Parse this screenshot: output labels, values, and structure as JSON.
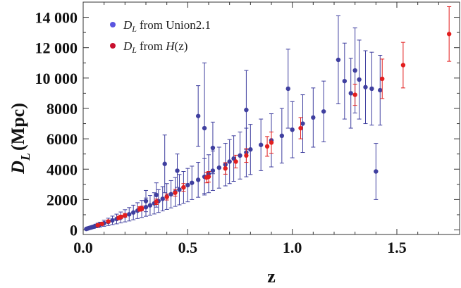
{
  "chart_data": {
    "type": "scatter",
    "xlabel": "z",
    "ylabel_main": "D",
    "ylabel_sub": "L",
    "ylabel_unit": "(Mpc)",
    "xlim": [
      0,
      1.8
    ],
    "ylim": [
      -300,
      15000
    ],
    "x_ticks": [
      0.0,
      0.5,
      1.0,
      1.5
    ],
    "x_tick_labels": [
      "0.0",
      "0.5",
      "1.0",
      "1.5"
    ],
    "y_ticks": [
      0,
      2000,
      4000,
      6000,
      8000,
      10000,
      12000,
      14000
    ],
    "y_tick_labels": [
      "0",
      "2000",
      "4000",
      "6000",
      "8000",
      "10 000",
      "12 000",
      "14 000"
    ],
    "legend_position": "top-left",
    "legend": [
      {
        "key": "union",
        "symbol": "D",
        "sub": "L",
        "text": "from Union2.1"
      },
      {
        "key": "hz",
        "symbol": "D",
        "sub": "L",
        "text": "from ",
        "func": "H",
        "arg": "(z)"
      }
    ],
    "series": [
      {
        "key": "union",
        "color": "#3f3f9f",
        "points": [
          [
            0.015,
            65,
            30
          ],
          [
            0.02,
            90,
            40
          ],
          [
            0.025,
            110,
            50
          ],
          [
            0.03,
            130,
            60
          ],
          [
            0.035,
            150,
            70
          ],
          [
            0.04,
            170,
            80
          ],
          [
            0.05,
            210,
            100
          ],
          [
            0.06,
            260,
            120
          ],
          [
            0.07,
            300,
            140
          ],
          [
            0.08,
            350,
            160
          ],
          [
            0.1,
            440,
            200
          ],
          [
            0.12,
            530,
            240
          ],
          [
            0.14,
            630,
            280
          ],
          [
            0.16,
            720,
            320
          ],
          [
            0.18,
            820,
            360
          ],
          [
            0.2,
            930,
            400
          ],
          [
            0.22,
            1030,
            440
          ],
          [
            0.24,
            1150,
            480
          ],
          [
            0.26,
            1270,
            520
          ],
          [
            0.28,
            1380,
            560
          ],
          [
            0.3,
            1500,
            600
          ],
          [
            0.32,
            1620,
            650
          ],
          [
            0.34,
            1750,
            700
          ],
          [
            0.36,
            1900,
            750
          ],
          [
            0.38,
            2050,
            800
          ],
          [
            0.4,
            2200,
            850
          ],
          [
            0.42,
            2350,
            900
          ],
          [
            0.44,
            2500,
            950
          ],
          [
            0.46,
            2650,
            1000
          ],
          [
            0.48,
            2800,
            1050
          ],
          [
            0.5,
            2950,
            1100
          ],
          [
            0.52,
            3100,
            1100
          ],
          [
            0.55,
            3300,
            1150
          ],
          [
            0.58,
            3500,
            1200
          ],
          [
            0.6,
            3700,
            1250
          ],
          [
            0.62,
            3900,
            1300
          ],
          [
            0.65,
            4100,
            1350
          ],
          [
            0.68,
            4300,
            1400
          ],
          [
            0.7,
            4500,
            1450
          ],
          [
            0.72,
            4700,
            1500
          ],
          [
            0.75,
            4900,
            1550
          ],
          [
            0.78,
            5100,
            1600
          ],
          [
            0.8,
            5300,
            1650
          ],
          [
            0.85,
            5600,
            1700
          ],
          [
            0.9,
            5900,
            1750
          ],
          [
            0.95,
            6200,
            1800
          ],
          [
            1.0,
            6600,
            1850
          ],
          [
            1.05,
            7000,
            1900
          ],
          [
            1.1,
            7400,
            1950
          ],
          [
            1.15,
            7800,
            2000
          ],
          [
            0.39,
            4350,
            1900
          ],
          [
            0.55,
            7500,
            2000
          ],
          [
            0.58,
            6700,
            4300
          ],
          [
            0.78,
            7900,
            2600
          ],
          [
            0.98,
            9300,
            2600
          ],
          [
            1.22,
            11200,
            2900
          ],
          [
            1.25,
            9800,
            2500
          ],
          [
            1.28,
            9000,
            2300
          ],
          [
            1.3,
            10500,
            2800
          ],
          [
            1.32,
            9900,
            2600
          ],
          [
            1.35,
            9400,
            2400
          ],
          [
            1.38,
            9300,
            2400
          ],
          [
            1.4,
            3850,
            1850
          ],
          [
            1.42,
            9200,
            2300
          ],
          [
            0.45,
            3900,
            1100
          ],
          [
            0.35,
            2300,
            800
          ],
          [
            0.3,
            1900,
            700
          ],
          [
            0.62,
            5400,
            1700
          ]
        ]
      },
      {
        "key": "hz",
        "color": "#e21e1e",
        "points": [
          [
            0.07,
            310,
            60
          ],
          [
            0.09,
            400,
            60
          ],
          [
            0.12,
            560,
            80
          ],
          [
            0.17,
            790,
            110
          ],
          [
            0.18,
            860,
            110
          ],
          [
            0.2,
            960,
            120
          ],
          [
            0.27,
            1380,
            150
          ],
          [
            0.28,
            1420,
            150
          ],
          [
            0.35,
            1850,
            180
          ],
          [
            0.4,
            2170,
            200
          ],
          [
            0.44,
            2450,
            220
          ],
          [
            0.48,
            2800,
            250
          ],
          [
            0.59,
            3450,
            350
          ],
          [
            0.6,
            3500,
            350
          ],
          [
            0.68,
            4050,
            380
          ],
          [
            0.73,
            4500,
            420
          ],
          [
            0.78,
            4900,
            450
          ],
          [
            0.88,
            5500,
            650
          ],
          [
            0.9,
            5750,
            700
          ],
          [
            1.04,
            6700,
            700
          ],
          [
            1.3,
            8900,
            700
          ],
          [
            1.43,
            9950,
            1300
          ],
          [
            1.53,
            10850,
            1500
          ],
          [
            1.75,
            12900,
            1800
          ]
        ]
      }
    ]
  }
}
